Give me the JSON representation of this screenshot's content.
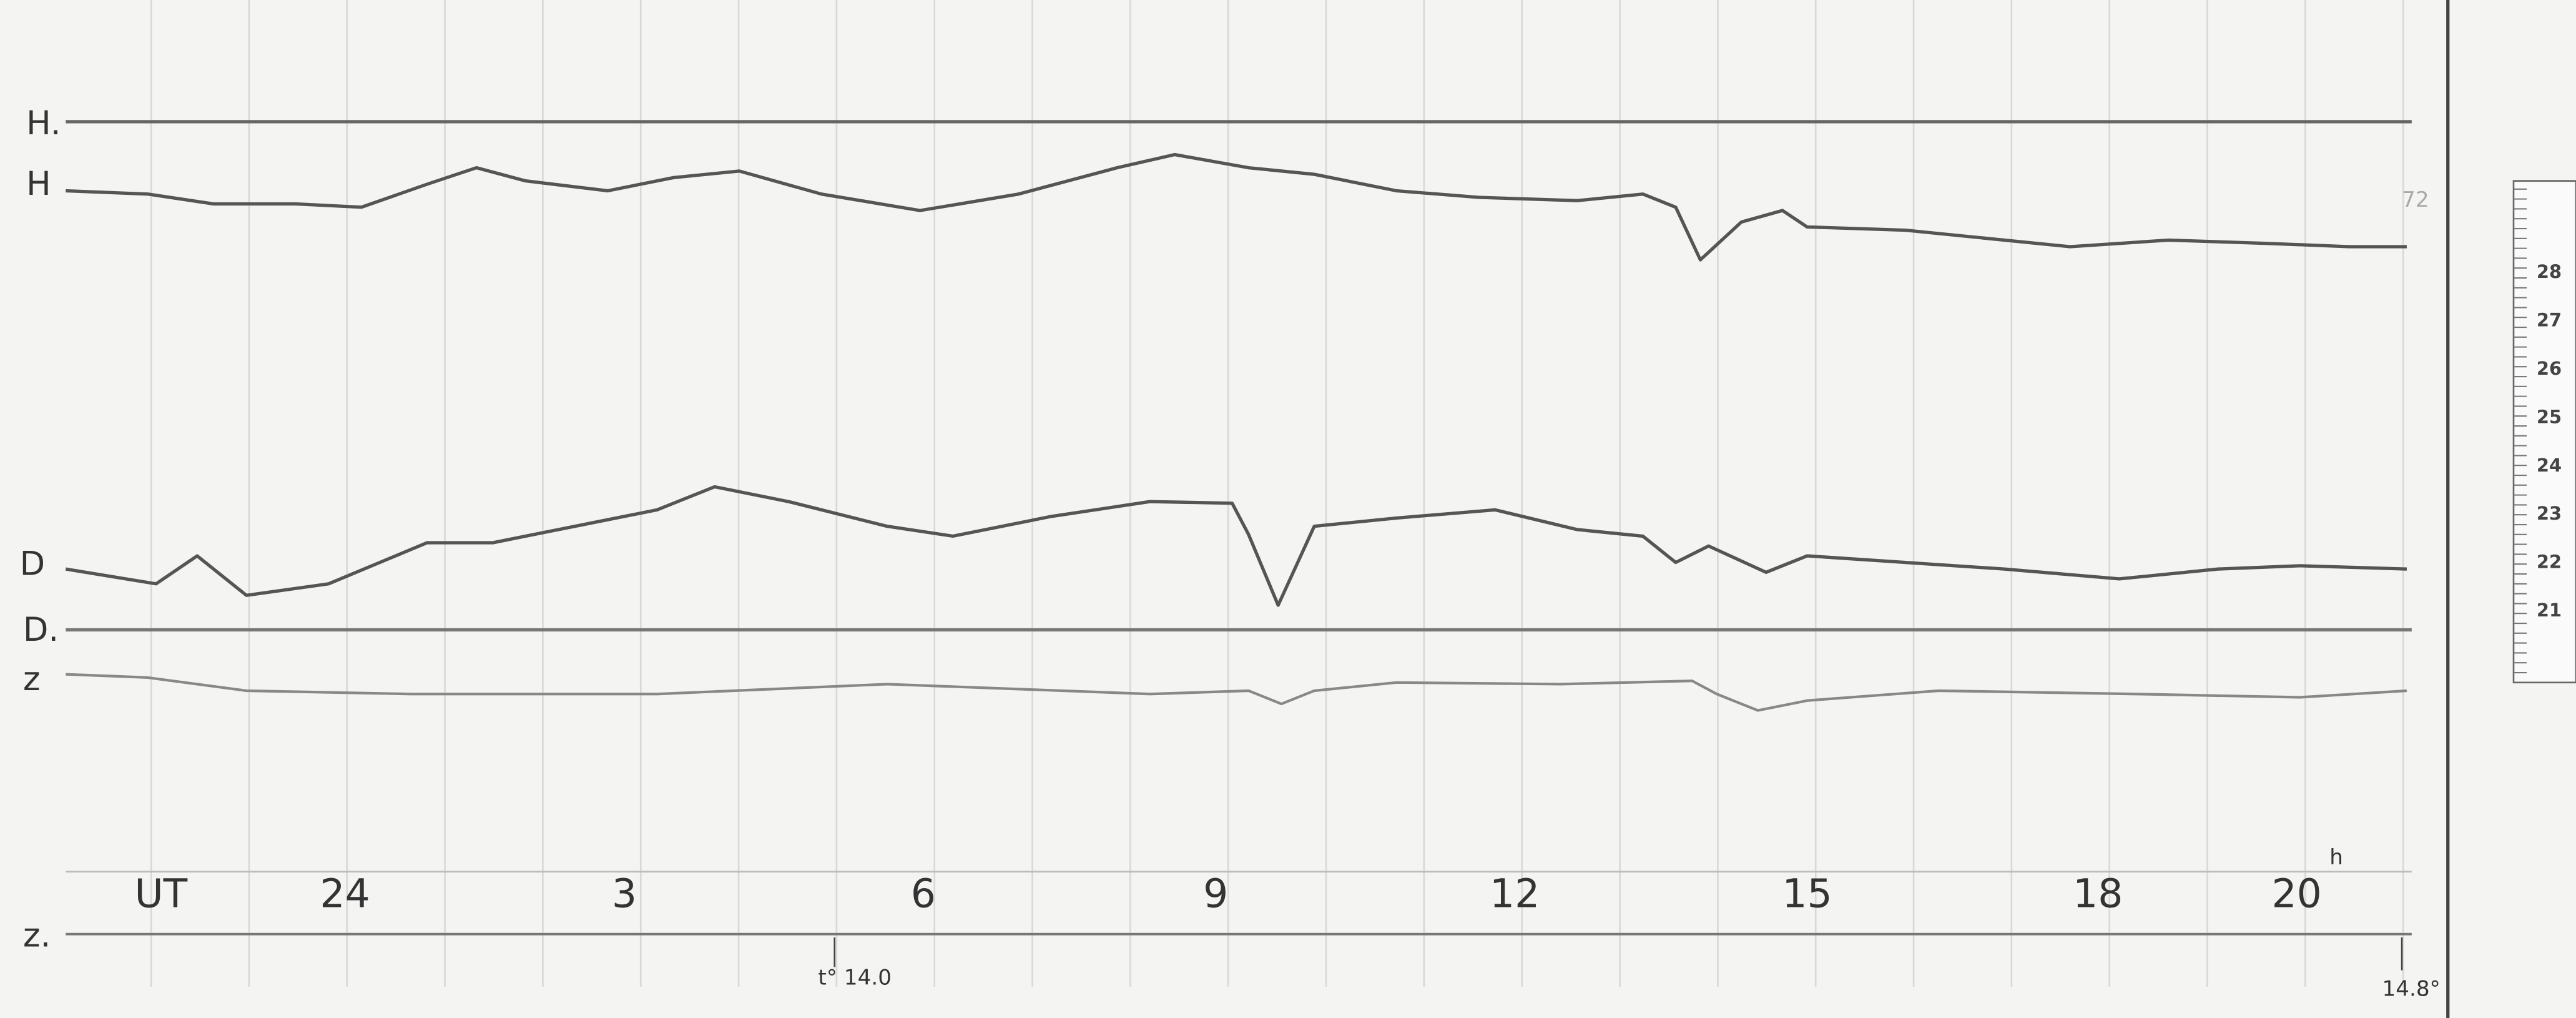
{
  "trace_labels": {
    "h0": "H.",
    "h": "H",
    "d": "D",
    "d0": "D.",
    "z": "z",
    "z0": "z."
  },
  "time_axis": {
    "unit": "UT",
    "hours": [
      "24",
      "3",
      "6",
      "9",
      "12",
      "15",
      "18",
      "20"
    ],
    "hour_suffix": "h"
  },
  "temperature": {
    "start": "t° 14.0",
    "end": "14.8°"
  },
  "scale": {
    "marks": [
      "28",
      "27",
      "26",
      "25",
      "24",
      "23",
      "22",
      "21"
    ]
  },
  "margin_note": "72"
}
